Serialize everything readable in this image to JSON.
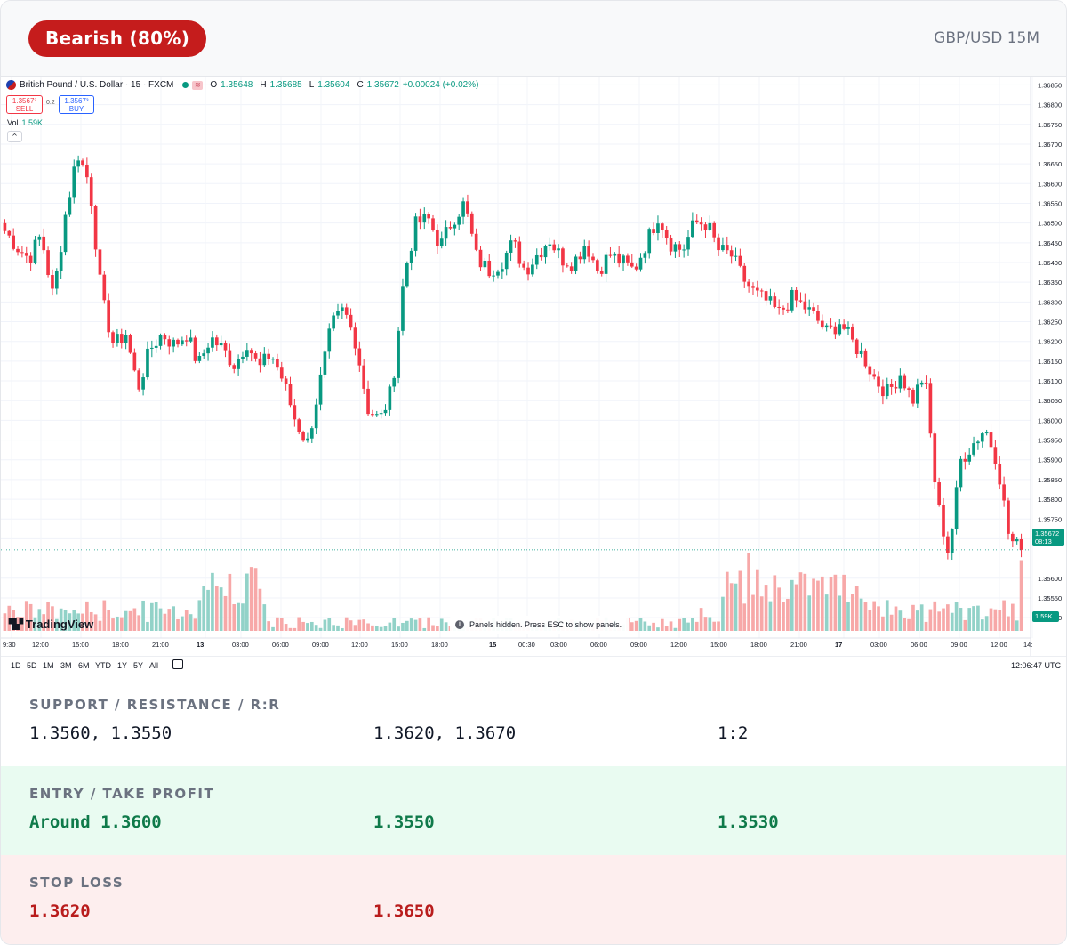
{
  "header": {
    "sentiment_badge": "Bearish (80%)",
    "pair_timeframe": "GBP/USD 15M",
    "badge_color": "#c51c1c"
  },
  "chart": {
    "symbol_label": "British Pound / U.S. Dollar · 15 · FXCM",
    "ohlc": [
      {
        "k": "O",
        "v": "1.35648"
      },
      {
        "k": "H",
        "v": "1.35685"
      },
      {
        "k": "L",
        "v": "1.35604"
      },
      {
        "k": "C",
        "v": "1.35672"
      }
    ],
    "change": "+0.00024 (+0.02%)",
    "sell_price": "1.3567²",
    "sell_label": "SELL",
    "spread": "0.2",
    "buy_price": "1.3567³",
    "buy_label": "BUY",
    "vol_label": "Vol",
    "vol_value": "1.59K",
    "tradingview_logo": "TradingView",
    "panels_note": "Panels hidden. Press ESC to show panels.",
    "current_price_tag": "1.35672",
    "countdown": "08:13",
    "volume_tag": "1.59K",
    "time_display": "12:06:47 UTC",
    "range_buttons": [
      "1D",
      "5D",
      "1M",
      "3M",
      "6M",
      "YTD",
      "1Y",
      "5Y",
      "All"
    ],
    "colors": {
      "up": "#089981",
      "down": "#f23645",
      "vol_up": "#92d2c8",
      "vol_down": "#f7a8a8"
    }
  },
  "chart_data": {
    "type": "candlestick",
    "title": "British Pound / U.S. Dollar · 15 · FXCM",
    "x_tick_labels": [
      "9:30",
      "12:00",
      "15:00",
      "18:00",
      "21:00",
      "13",
      "03:00",
      "06:00",
      "09:00",
      "12:00",
      "15:00",
      "18:00",
      "15",
      "00:30",
      "03:00",
      "06:00",
      "09:00",
      "12:00",
      "15:00",
      "18:00",
      "21:00",
      "17",
      "03:00",
      "06:00",
      "09:00",
      "12:00",
      "14:"
    ],
    "y_tick_labels": [
      "1.36850",
      "1.36800",
      "1.36750",
      "1.36700",
      "1.36650",
      "1.36600",
      "1.36550",
      "1.36500",
      "1.36450",
      "1.36400",
      "1.36350",
      "1.36300",
      "1.36250",
      "1.36200",
      "1.36150",
      "1.36100",
      "1.36050",
      "1.36000",
      "1.35950",
      "1.35900",
      "1.35850",
      "1.35800",
      "1.35750",
      "1.35700",
      "1.35600",
      "1.35550",
      "1.35500"
    ],
    "ylim": [
      1.3548,
      1.3686
    ],
    "price_path": [
      1.3648,
      1.3644,
      1.3641,
      1.3647,
      1.3631,
      1.3652,
      1.3668,
      1.366,
      1.3631,
      1.3619,
      1.3622,
      1.3608,
      1.3618,
      1.3622,
      1.3619,
      1.3622,
      1.3614,
      1.3621,
      1.3618,
      1.3614,
      1.362,
      1.3613,
      1.3617,
      1.361,
      1.36,
      1.3594,
      1.3609,
      1.3624,
      1.3628,
      1.362,
      1.3603,
      1.36,
      1.3608,
      1.3637,
      1.365,
      1.3651,
      1.3644,
      1.3651,
      1.3655,
      1.3641,
      1.3638,
      1.364,
      1.3645,
      1.3638,
      1.3642,
      1.3646,
      1.3641,
      1.364,
      1.3645,
      1.3638,
      1.3642,
      1.364,
      1.3638,
      1.3645,
      1.3652,
      1.3645,
      1.3643,
      1.365,
      1.365,
      1.3643,
      1.3642,
      1.3636,
      1.3632,
      1.363,
      1.3627,
      1.3631,
      1.3629,
      1.3626,
      1.3622,
      1.3625,
      1.362,
      1.3616,
      1.361,
      1.3607,
      1.3612,
      1.3605,
      1.3612,
      1.358,
      1.3566,
      1.359,
      1.3594,
      1.3598,
      1.359,
      1.357,
      1.3567
    ],
    "volume_range": [
      0,
      1760
    ],
    "current_price": 1.35672,
    "current_volume": 1590
  },
  "levels": {
    "row1_title": "SUPPORT / RESISTANCE / R:R",
    "support": "1.3560, 1.3550",
    "resistance": "1.3620, 1.3670",
    "rr": "1:2",
    "row2_title": "ENTRY / TAKE PROFIT",
    "entry": "Around 1.3600",
    "tp1": "1.3550",
    "tp2": "1.3530",
    "row3_title": "STOP LOSS",
    "sl1": "1.3620",
    "sl2": "1.3650"
  }
}
